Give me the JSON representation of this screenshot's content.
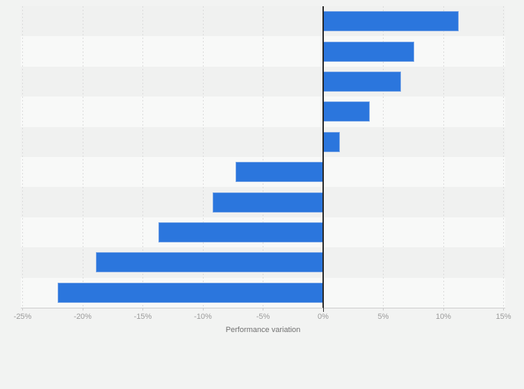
{
  "page": {
    "background": "#f2f3f2"
  },
  "chart_data": {
    "type": "bar",
    "orientation": "horizontal",
    "xlabel": "Performance variation",
    "values": [
      11.3,
      7.6,
      6.5,
      3.9,
      1.4,
      -7.3,
      -9.2,
      -13.7,
      -18.9,
      -22.1
    ],
    "unit": "%",
    "category_labels_visible": false,
    "xlim": [
      -25,
      15
    ],
    "x_ticks": [
      -25,
      -20,
      -15,
      -10,
      -5,
      0,
      5,
      10,
      15
    ],
    "x_tick_labels": [
      "-25%",
      "-20%",
      "-15%",
      "-10%",
      "-5%",
      "0%",
      "5%",
      "10%",
      "15%"
    ],
    "grid": "vertical-dashed",
    "legend": "none",
    "row_striping": true,
    "colors": {
      "bar": "#2b76dd",
      "bar_edge": "#79a5e6",
      "zero_line": "#262626",
      "gridline": "#d9d9d9",
      "axis_line": "#cccccc",
      "tick_mark": "#c9c9c9",
      "stripe_dark": "#f0f1f0",
      "stripe_light": "#f8f9f8",
      "tick_label": "#999999",
      "axis_title": "#707070"
    }
  }
}
